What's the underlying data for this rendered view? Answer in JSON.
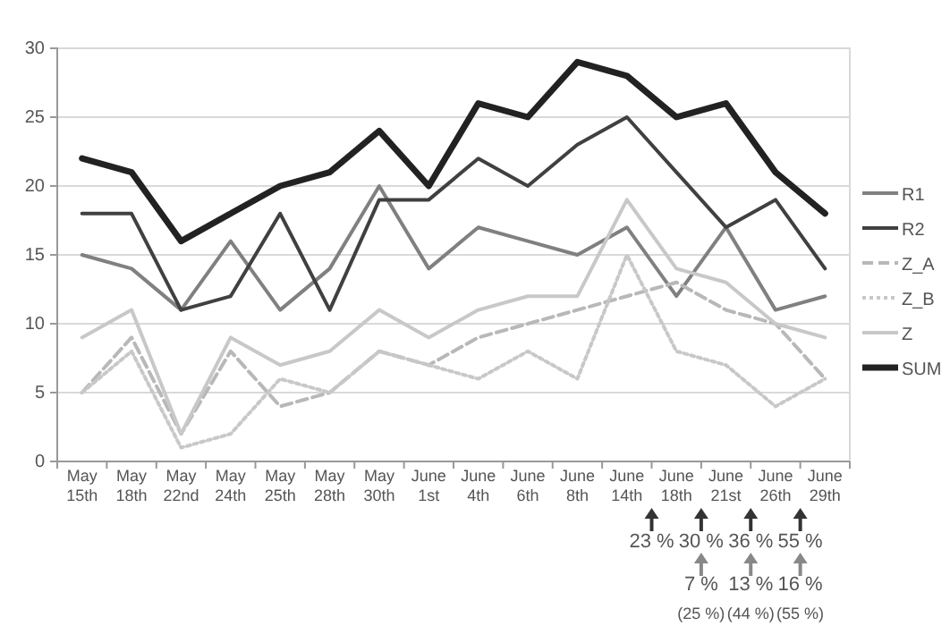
{
  "chart_data": {
    "type": "line",
    "categories": [
      "May 15th",
      "May 18th",
      "May 22nd",
      "May 24th",
      "May 25th",
      "May 28th",
      "May 30th",
      "June 1st",
      "June 4th",
      "June 6th",
      "June 8th",
      "June 14th",
      "June 18th",
      "June 21st",
      "June 26th",
      "June 29th"
    ],
    "series": [
      {
        "name": "R1",
        "color": "#808080",
        "line_style": "solid",
        "values": [
          15,
          14,
          11,
          16,
          11,
          14,
          20,
          14,
          17,
          16,
          15,
          17,
          12,
          17,
          11,
          12
        ]
      },
      {
        "name": "R2",
        "color": "#404040",
        "line_style": "solid",
        "values": [
          18,
          18,
          11,
          12,
          18,
          11,
          19,
          19,
          22,
          20,
          23,
          25,
          21,
          17,
          19,
          14
        ]
      },
      {
        "name": "Z_A",
        "color": "#b8b8b8",
        "line_style": "dashed",
        "values": [
          5,
          9,
          2,
          8,
          4,
          5,
          8,
          7,
          9,
          10,
          11,
          12,
          13,
          11,
          10,
          6
        ]
      },
      {
        "name": "Z_B",
        "color": "#c8c8c8",
        "line_style": "dotted",
        "values": [
          5,
          8,
          1,
          2,
          6,
          5,
          8,
          7,
          6,
          8,
          6,
          15,
          8,
          7,
          4,
          6
        ]
      },
      {
        "name": "Z",
        "color": "#c8c8c8",
        "line_style": "solid",
        "values": [
          9,
          11,
          2,
          9,
          7,
          8,
          11,
          9,
          11,
          12,
          12,
          19,
          14,
          13,
          10,
          9
        ]
      },
      {
        "name": "SUM",
        "color": "#222222",
        "line_style": "solid",
        "values": [
          22,
          21,
          16,
          18,
          20,
          21,
          24,
          20,
          26,
          25,
          29,
          28,
          25,
          26,
          21,
          18
        ]
      }
    ],
    "ylim": [
      0,
      30
    ],
    "yticks": [
      0,
      5,
      10,
      15,
      20,
      25,
      30
    ],
    "grid": "y",
    "legend": "right",
    "marker": "none",
    "annotations": [
      "23 %",
      "30 %",
      "36 %",
      "55 %",
      "7 %",
      "13 %",
      "16 %",
      "(25 %)",
      "(44 %)",
      "(55 %)"
    ]
  }
}
